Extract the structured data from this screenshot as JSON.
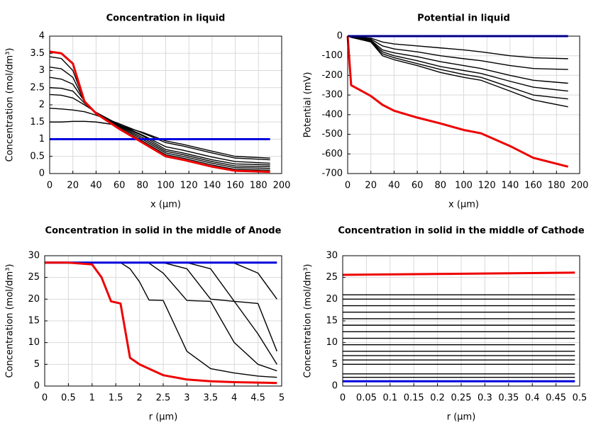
{
  "chart_data": [
    {
      "type": "line",
      "title": "Concentration in liquid",
      "xlabel": "x (µm)",
      "ylabel": "Concentration (mol/dm³)",
      "x": [
        0,
        10,
        20,
        30,
        40,
        60,
        80,
        100,
        115,
        140,
        160,
        190
      ],
      "xlim": [
        0,
        200
      ],
      "ylim": [
        0,
        4
      ],
      "xticks": [
        0,
        20,
        40,
        60,
        80,
        100,
        120,
        140,
        160,
        180,
        200
      ],
      "yticks": [
        0,
        0.5,
        1,
        1.5,
        2,
        2.5,
        3,
        3.5,
        4
      ],
      "grid": true,
      "series": [
        {
          "color": "#000000",
          "values": [
            3.4,
            3.35,
            3.0,
            2.1,
            1.75,
            1.32,
            0.95,
            0.55,
            0.45,
            0.25,
            0.12,
            0.1
          ]
        },
        {
          "color": "#000000",
          "values": [
            3.1,
            3.05,
            2.8,
            2.1,
            1.76,
            1.35,
            1.0,
            0.6,
            0.5,
            0.3,
            0.17,
            0.15
          ]
        },
        {
          "color": "#000000",
          "values": [
            2.8,
            2.75,
            2.6,
            2.1,
            1.77,
            1.38,
            1.05,
            0.65,
            0.55,
            0.35,
            0.22,
            0.2
          ]
        },
        {
          "color": "#000000",
          "values": [
            2.5,
            2.48,
            2.4,
            2.05,
            1.78,
            1.4,
            1.1,
            0.7,
            0.6,
            0.4,
            0.28,
            0.25
          ]
        },
        {
          "color": "#000000",
          "values": [
            2.3,
            2.28,
            2.2,
            2.0,
            1.78,
            1.42,
            1.12,
            0.78,
            0.68,
            0.48,
            0.35,
            0.3
          ]
        },
        {
          "color": "#000000",
          "values": [
            1.9,
            1.88,
            1.85,
            1.8,
            1.7,
            1.45,
            1.18,
            0.9,
            0.8,
            0.6,
            0.45,
            0.4
          ]
        },
        {
          "color": "#000000",
          "values": [
            1.5,
            1.5,
            1.52,
            1.52,
            1.5,
            1.4,
            1.2,
            0.95,
            0.85,
            0.65,
            0.5,
            0.45
          ]
        },
        {
          "color": "#0000dd",
          "values": [
            1,
            1,
            1,
            1,
            1,
            1,
            1,
            1,
            1,
            1,
            1,
            1
          ]
        },
        {
          "color": "#ee0000",
          "values": [
            3.55,
            3.5,
            3.2,
            2.1,
            1.75,
            1.3,
            0.9,
            0.5,
            0.4,
            0.2,
            0.08,
            0.05
          ]
        }
      ]
    },
    {
      "type": "line",
      "title": "Potential in liquid",
      "xlabel": "x (µm)",
      "ylabel": "Potential (mV)",
      "x": [
        0,
        3,
        20,
        30,
        40,
        60,
        80,
        100,
        115,
        140,
        160,
        190
      ],
      "xlim": [
        0,
        200
      ],
      "ylim": [
        -700,
        0
      ],
      "xticks": [
        0,
        20,
        40,
        60,
        80,
        100,
        120,
        140,
        160,
        180,
        200
      ],
      "yticks": [
        0,
        -100,
        -200,
        -300,
        -400,
        -500,
        -600,
        -700
      ],
      "grid": true,
      "series": [
        {
          "color": "#000000",
          "values": [
            0,
            -3,
            -10,
            -30,
            -40,
            -50,
            -60,
            -70,
            -80,
            -100,
            -110,
            -115
          ]
        },
        {
          "color": "#000000",
          "values": [
            0,
            -4,
            -15,
            -50,
            -65,
            -80,
            -100,
            -115,
            -125,
            -150,
            -165,
            -170
          ]
        },
        {
          "color": "#000000",
          "values": [
            0,
            -5,
            -20,
            -70,
            -85,
            -105,
            -130,
            -150,
            -165,
            -200,
            -225,
            -240
          ]
        },
        {
          "color": "#000000",
          "values": [
            0,
            -5,
            -25,
            -80,
            -100,
            -125,
            -155,
            -175,
            -190,
            -230,
            -260,
            -280
          ]
        },
        {
          "color": "#000000",
          "values": [
            0,
            -6,
            -28,
            -90,
            -110,
            -140,
            -170,
            -195,
            -210,
            -260,
            -300,
            -320
          ]
        },
        {
          "color": "#000000",
          "values": [
            0,
            -6,
            -30,
            -100,
            -120,
            -150,
            -185,
            -210,
            -225,
            -280,
            -325,
            -360
          ]
        },
        {
          "color": "#0000dd",
          "values": [
            0,
            0,
            0,
            0,
            0,
            0,
            0,
            0,
            0,
            0,
            0,
            0
          ]
        },
        {
          "color": "#ee0000",
          "values": [
            0,
            -250,
            -305,
            -350,
            -380,
            -415,
            -445,
            -478,
            -495,
            -560,
            -620,
            -665
          ]
        }
      ]
    },
    {
      "type": "line",
      "title": "Concentration in solid in the middle of Anode",
      "xlabel": "r (µm)",
      "ylabel": "Concentration (mol/dm³)",
      "x": [
        0,
        0.5,
        1,
        1.2,
        1.4,
        1.6,
        1.8,
        2,
        2.2,
        2.5,
        3,
        3.5,
        4,
        4.5,
        4.9
      ],
      "xlim": [
        0,
        5
      ],
      "ylim": [
        0,
        30
      ],
      "xticks": [
        0,
        0.5,
        1,
        1.5,
        2,
        2.5,
        3,
        3.5,
        4,
        4.5,
        5
      ],
      "yticks": [
        0,
        5,
        10,
        15,
        20,
        25,
        30
      ],
      "grid": true,
      "series": [
        {
          "color": "#000000",
          "values": [
            28.4,
            28.4,
            28.4,
            28.4,
            28.4,
            28.4,
            27,
            24,
            19.8,
            19.7,
            8,
            4,
            3,
            2.3,
            2
          ]
        },
        {
          "color": "#000000",
          "values": [
            28.4,
            28.4,
            28.4,
            28.4,
            28.4,
            28.4,
            28.4,
            28.4,
            28.3,
            26,
            19.7,
            19.5,
            10,
            5,
            3.5
          ]
        },
        {
          "color": "#000000",
          "values": [
            28.4,
            28.4,
            28.4,
            28.4,
            28.4,
            28.4,
            28.4,
            28.4,
            28.4,
            28.4,
            27,
            20,
            19.5,
            12,
            5
          ]
        },
        {
          "color": "#000000",
          "values": [
            28.4,
            28.4,
            28.4,
            28.4,
            28.4,
            28.4,
            28.4,
            28.4,
            28.4,
            28.4,
            28.4,
            27,
            19.5,
            19,
            8
          ]
        },
        {
          "color": "#000000",
          "values": [
            28.4,
            28.4,
            28.4,
            28.4,
            28.4,
            28.4,
            28.4,
            28.4,
            28.4,
            28.4,
            28.4,
            28.4,
            28.3,
            26,
            20
          ]
        },
        {
          "color": "#0000dd",
          "values": [
            28.4,
            28.4,
            28.4,
            28.4,
            28.4,
            28.4,
            28.4,
            28.4,
            28.4,
            28.4,
            28.4,
            28.4,
            28.4,
            28.4,
            28.4
          ]
        },
        {
          "color": "#ee0000",
          "values": [
            28.4,
            28.4,
            28,
            25,
            19.5,
            19,
            6.5,
            5,
            4,
            2.5,
            1.5,
            1.1,
            0.9,
            0.8,
            0.7
          ]
        }
      ]
    },
    {
      "type": "line",
      "title": "Concentration in solid in the middle of Cathode",
      "xlabel": "r (µm)",
      "ylabel": "Concentration (mol/dm³)",
      "x": [
        0,
        0.1,
        0.2,
        0.3,
        0.4,
        0.49
      ],
      "xlim": [
        0,
        0.5
      ],
      "ylim": [
        0,
        30
      ],
      "xticks": [
        0,
        0.05,
        0.1,
        0.15,
        0.2,
        0.25,
        0.3,
        0.35,
        0.4,
        0.45,
        0.5
      ],
      "yticks": [
        0,
        5,
        10,
        15,
        20,
        25,
        30
      ],
      "grid": true,
      "series": [
        {
          "color": "#000000",
          "values": [
            21,
            21,
            21,
            21,
            21,
            21
          ]
        },
        {
          "color": "#000000",
          "values": [
            20,
            20,
            20,
            20,
            20,
            20
          ]
        },
        {
          "color": "#000000",
          "values": [
            18.5,
            18.5,
            18.5,
            18.5,
            18.5,
            18.5
          ]
        },
        {
          "color": "#000000",
          "values": [
            17,
            17,
            17,
            17,
            17,
            17
          ]
        },
        {
          "color": "#000000",
          "values": [
            15.5,
            15.5,
            15.5,
            15.5,
            15.5,
            15.5
          ]
        },
        {
          "color": "#000000",
          "values": [
            14,
            14,
            14,
            14,
            14,
            14
          ]
        },
        {
          "color": "#000000",
          "values": [
            12.5,
            12.5,
            12.5,
            12.5,
            12.5,
            12.5
          ]
        },
        {
          "color": "#000000",
          "values": [
            11,
            11,
            11,
            11,
            11,
            11
          ]
        },
        {
          "color": "#000000",
          "values": [
            9.5,
            9.5,
            9.5,
            9.5,
            9.5,
            9.5
          ]
        },
        {
          "color": "#000000",
          "values": [
            8,
            8,
            8,
            8,
            8,
            8
          ]
        },
        {
          "color": "#000000",
          "values": [
            7,
            7,
            7,
            7,
            7,
            7
          ]
        },
        {
          "color": "#000000",
          "values": [
            6,
            6,
            6,
            6,
            6,
            6
          ]
        },
        {
          "color": "#000000",
          "values": [
            5,
            5,
            5,
            5,
            5,
            5
          ]
        },
        {
          "color": "#000000",
          "values": [
            2.8,
            2.8,
            2.8,
            2.8,
            2.8,
            2.8
          ]
        },
        {
          "color": "#000000",
          "values": [
            2,
            2,
            2,
            2,
            2,
            2
          ]
        },
        {
          "color": "#0000dd",
          "values": [
            1.1,
            1.1,
            1.1,
            1.1,
            1.1,
            1.1
          ]
        },
        {
          "color": "#ee0000",
          "values": [
            25.6,
            25.7,
            25.8,
            25.9,
            26,
            26.1
          ]
        }
      ]
    }
  ]
}
